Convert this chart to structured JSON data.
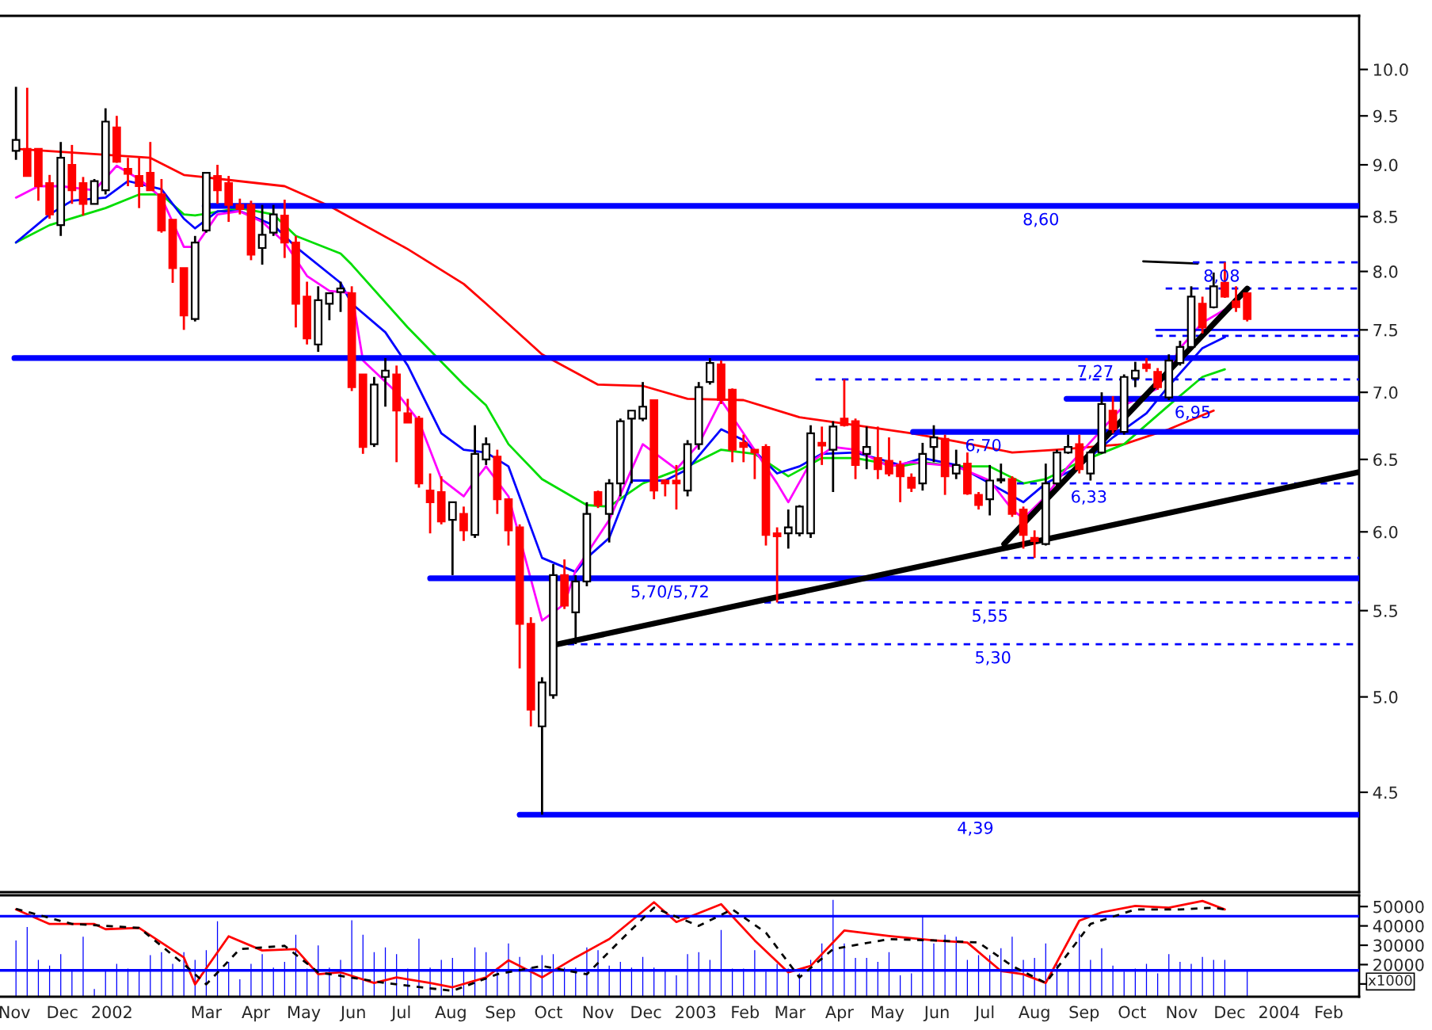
{
  "chart_data": [
    {
      "type": "candlestick",
      "log": true,
      "tick_labels": "y",
      "xlim": [
        "2001-10-23",
        "2004-02-20"
      ],
      "ylim": [
        4.03,
        10.61
      ],
      "xticks": [
        {
          "value": "2001-11-01",
          "label": null
        },
        {
          "value": "2001-12-01",
          "label": null
        },
        {
          "value": "2002-01-01",
          "label": null
        },
        {
          "value": "2002-03-01",
          "label": null
        },
        {
          "value": "2002-04-01",
          "label": null
        },
        {
          "value": "2002-05-01",
          "label": null
        },
        {
          "value": "2002-06-01",
          "label": null
        },
        {
          "value": "2002-07-01",
          "label": null
        },
        {
          "value": "2002-08-01",
          "label": null
        },
        {
          "value": "2002-09-01",
          "label": null
        },
        {
          "value": "2002-10-01",
          "label": null
        },
        {
          "value": "2002-11-01",
          "label": null
        },
        {
          "value": "2002-12-01",
          "label": null
        },
        {
          "value": "2003-01-01",
          "label": null
        },
        {
          "value": "2003-02-01",
          "label": null
        },
        {
          "value": "2003-03-01",
          "label": null
        },
        {
          "value": "2003-04-01",
          "label": null
        },
        {
          "value": "2003-05-01",
          "label": null
        },
        {
          "value": "2003-06-01",
          "label": null
        },
        {
          "value": "2003-07-01",
          "label": null
        },
        {
          "value": "2003-08-01",
          "label": null
        },
        {
          "value": "2003-09-01",
          "label": null
        },
        {
          "value": "2003-10-01",
          "label": null
        },
        {
          "value": "2003-11-01",
          "label": null
        },
        {
          "value": "2003-12-01",
          "label": null
        },
        {
          "value": "2004-01-01",
          "label": null
        },
        {
          "value": "2004-02-01",
          "label": null
        }
      ],
      "yticks": [
        4.5,
        {
          "value": 5,
          "label": "5.0"
        },
        5.5,
        {
          "value": 6,
          "label": "6.0"
        },
        6.5,
        {
          "value": 7,
          "label": "7.0"
        },
        7.5,
        {
          "value": 8,
          "label": "8.0"
        },
        8.5,
        {
          "value": 9,
          "label": "9.0"
        },
        9.5,
        {
          "value": 10,
          "label": "10.0"
        }
      ],
      "x": [
        "2001-11-02",
        "2001-11-09",
        "2001-11-16",
        "2001-11-23",
        "2001-11-30",
        "2001-12-07",
        "2001-12-14",
        "2001-12-21",
        "2001-12-28",
        "2002-01-04",
        "2002-01-11",
        "2002-01-18",
        "2002-01-25",
        "2002-02-01",
        "2002-02-08",
        "2002-02-15",
        "2002-02-22",
        "2002-03-01",
        "2002-03-08",
        "2002-03-15",
        "2002-03-22",
        "2002-03-29",
        "2002-04-05",
        "2002-04-12",
        "2002-04-19",
        "2002-04-26",
        "2002-05-03",
        "2002-05-10",
        "2002-05-17",
        "2002-05-24",
        "2002-05-31",
        "2002-06-07",
        "2002-06-14",
        "2002-06-21",
        "2002-06-28",
        "2002-07-05",
        "2002-07-12",
        "2002-07-19",
        "2002-07-26",
        "2002-08-02",
        "2002-08-09",
        "2002-08-16",
        "2002-08-23",
        "2002-08-30",
        "2002-09-06",
        "2002-09-13",
        "2002-09-20",
        "2002-09-27",
        "2002-10-04",
        "2002-10-11",
        "2002-10-18",
        "2002-10-25",
        "2002-11-01",
        "2002-11-08",
        "2002-11-15",
        "2002-11-22",
        "2002-11-29",
        "2002-12-06",
        "2002-12-13",
        "2002-12-20",
        "2002-12-27",
        "2003-01-03",
        "2003-01-10",
        "2003-01-17",
        "2003-01-24",
        "2003-01-31",
        "2003-02-07",
        "2003-02-14",
        "2003-02-21",
        "2003-02-28",
        "2003-03-07",
        "2003-03-14",
        "2003-03-21",
        "2003-03-28",
        "2003-04-04",
        "2003-04-11",
        "2003-04-18",
        "2003-04-25",
        "2003-05-02",
        "2003-05-09",
        "2003-05-16",
        "2003-05-23",
        "2003-05-30",
        "2003-06-06",
        "2003-06-13",
        "2003-06-20",
        "2003-06-27",
        "2003-07-04",
        "2003-07-11",
        "2003-07-18",
        "2003-07-25",
        "2003-08-01",
        "2003-08-08",
        "2003-08-15",
        "2003-08-22",
        "2003-08-29",
        "2003-09-05",
        "2003-09-12",
        "2003-09-19",
        "2003-09-26",
        "2003-10-03",
        "2003-10-10",
        "2003-10-17",
        "2003-10-24",
        "2003-10-31",
        "2003-11-07",
        "2003-11-14",
        "2003-11-21",
        "2003-11-28",
        "2003-12-05",
        "2003-12-12"
      ],
      "ohlc": [
        [
          9.14,
          9.81,
          9.05,
          9.25
        ],
        [
          9.16,
          9.8,
          8.89,
          8.89
        ],
        [
          9.16,
          9.16,
          8.65,
          8.79
        ],
        [
          8.82,
          8.9,
          8.48,
          8.52
        ],
        [
          8.42,
          9.23,
          8.32,
          9.07
        ],
        [
          9.0,
          9.2,
          8.62,
          8.75
        ],
        [
          8.82,
          8.88,
          8.51,
          8.62
        ],
        [
          8.62,
          8.86,
          8.62,
          8.84
        ],
        [
          8.75,
          9.58,
          8.71,
          9.44
        ],
        [
          9.38,
          9.5,
          9.02,
          9.03
        ],
        [
          8.96,
          9.07,
          8.79,
          8.91
        ],
        [
          8.89,
          9.07,
          8.58,
          8.79
        ],
        [
          8.92,
          9.23,
          8.75,
          8.75
        ],
        [
          8.71,
          8.86,
          8.35,
          8.37
        ],
        [
          8.47,
          8.47,
          7.9,
          8.03
        ],
        [
          8.03,
          8.03,
          7.5,
          7.62
        ],
        [
          7.59,
          8.32,
          7.57,
          8.26
        ],
        [
          8.37,
          8.92,
          8.35,
          8.92
        ],
        [
          8.89,
          9.0,
          8.62,
          8.75
        ],
        [
          8.82,
          8.89,
          8.45,
          8.61
        ],
        [
          8.61,
          8.67,
          8.52,
          8.57
        ],
        [
          8.61,
          8.65,
          8.1,
          8.15
        ],
        [
          8.21,
          8.61,
          8.06,
          8.33
        ],
        [
          8.35,
          8.61,
          8.32,
          8.52
        ],
        [
          8.51,
          8.66,
          8.12,
          8.26
        ],
        [
          8.26,
          8.32,
          7.52,
          7.72
        ],
        [
          7.78,
          7.91,
          7.38,
          7.43
        ],
        [
          7.38,
          7.87,
          7.32,
          7.75
        ],
        [
          7.72,
          7.81,
          7.58,
          7.81
        ],
        [
          7.82,
          7.91,
          7.65,
          7.85
        ],
        [
          7.81,
          7.87,
          7.01,
          7.04
        ],
        [
          7.14,
          7.14,
          6.54,
          6.59
        ],
        [
          6.61,
          7.12,
          6.59,
          7.06
        ],
        [
          7.12,
          7.27,
          6.89,
          7.17
        ],
        [
          7.14,
          7.21,
          6.48,
          6.86
        ],
        [
          6.84,
          6.95,
          6.77,
          6.77
        ],
        [
          6.8,
          6.82,
          6.3,
          6.33
        ],
        [
          6.28,
          6.4,
          5.99,
          6.2
        ],
        [
          6.27,
          6.38,
          6.05,
          6.07
        ],
        [
          6.08,
          6.2,
          5.72,
          6.2
        ],
        [
          6.12,
          6.17,
          5.94,
          6.01
        ],
        [
          5.98,
          6.75,
          5.96,
          6.54
        ],
        [
          6.5,
          6.66,
          6.46,
          6.61
        ],
        [
          6.52,
          6.57,
          6.12,
          6.22
        ],
        [
          6.22,
          6.22,
          5.91,
          6.01
        ],
        [
          6.03,
          6.05,
          5.16,
          5.42
        ],
        [
          5.42,
          5.46,
          4.84,
          4.93
        ],
        [
          4.84,
          5.11,
          4.39,
          5.08
        ],
        [
          5.01,
          5.79,
          4.99,
          5.72
        ],
        [
          5.72,
          5.82,
          5.51,
          5.53
        ],
        [
          5.49,
          5.72,
          5.3,
          5.68
        ],
        [
          5.68,
          6.2,
          5.65,
          6.12
        ],
        [
          6.27,
          6.28,
          6.16,
          6.18
        ],
        [
          6.12,
          6.36,
          5.93,
          6.33
        ],
        [
          6.33,
          6.8,
          6.24,
          6.78
        ],
        [
          6.8,
          6.86,
          6.33,
          6.86
        ],
        [
          6.8,
          7.08,
          6.78,
          6.89
        ],
        [
          6.94,
          6.94,
          6.22,
          6.28
        ],
        [
          6.35,
          6.36,
          6.24,
          6.33
        ],
        [
          6.35,
          6.46,
          6.15,
          6.33
        ],
        [
          6.28,
          6.64,
          6.24,
          6.61
        ],
        [
          6.61,
          7.08,
          6.57,
          7.04
        ],
        [
          7.08,
          7.27,
          7.06,
          7.23
        ],
        [
          7.22,
          7.25,
          6.91,
          6.94
        ],
        [
          7.02,
          7.03,
          6.48,
          6.57
        ],
        [
          6.62,
          6.68,
          6.48,
          6.59
        ],
        [
          6.57,
          6.57,
          6.36,
          6.55
        ],
        [
          6.59,
          6.61,
          5.91,
          5.98
        ],
        [
          5.99,
          6.03,
          5.55,
          5.97
        ],
        [
          5.99,
          6.15,
          5.89,
          6.03
        ],
        [
          5.99,
          6.18,
          5.97,
          6.17
        ],
        [
          5.99,
          6.75,
          5.96,
          6.69
        ],
        [
          6.62,
          6.74,
          6.46,
          6.6
        ],
        [
          6.57,
          6.78,
          6.27,
          6.74
        ],
        [
          6.8,
          7.1,
          6.74,
          6.75
        ],
        [
          6.78,
          6.8,
          6.36,
          6.46
        ],
        [
          6.54,
          6.74,
          6.43,
          6.59
        ],
        [
          6.51,
          6.74,
          6.36,
          6.43
        ],
        [
          6.49,
          6.66,
          6.38,
          6.4
        ],
        [
          6.46,
          6.49,
          6.2,
          6.38
        ],
        [
          6.37,
          6.4,
          6.27,
          6.3
        ],
        [
          6.33,
          6.62,
          6.28,
          6.54
        ],
        [
          6.59,
          6.75,
          6.48,
          6.66
        ],
        [
          6.65,
          6.68,
          6.25,
          6.38
        ],
        [
          6.4,
          6.57,
          6.36,
          6.46
        ],
        [
          6.47,
          6.55,
          6.25,
          6.26
        ],
        [
          6.25,
          6.27,
          6.15,
          6.18
        ],
        [
          6.22,
          6.46,
          6.11,
          6.35
        ],
        [
          6.35,
          6.47,
          6.33,
          6.36
        ],
        [
          6.36,
          6.38,
          6.1,
          6.12
        ],
        [
          6.15,
          6.17,
          5.89,
          5.98
        ],
        [
          5.96,
          6.01,
          5.83,
          5.94
        ],
        [
          5.92,
          6.47,
          5.91,
          6.33
        ],
        [
          6.33,
          6.57,
          6.31,
          6.55
        ],
        [
          6.55,
          6.68,
          6.54,
          6.59
        ],
        [
          6.61,
          6.68,
          6.4,
          6.43
        ],
        [
          6.4,
          6.57,
          6.35,
          6.55
        ],
        [
          6.55,
          7.0,
          6.54,
          6.91
        ],
        [
          6.86,
          6.97,
          6.69,
          6.72
        ],
        [
          6.7,
          7.14,
          6.68,
          7.12
        ],
        [
          7.11,
          7.24,
          7.04,
          7.17
        ],
        [
          7.22,
          7.27,
          7.16,
          7.19
        ],
        [
          7.16,
          7.19,
          7.02,
          7.04
        ],
        [
          6.96,
          7.3,
          6.94,
          7.25
        ],
        [
          7.23,
          7.41,
          7.21,
          7.36
        ],
        [
          7.36,
          7.87,
          7.35,
          7.78
        ],
        [
          7.72,
          7.78,
          7.47,
          7.52
        ],
        [
          7.69,
          7.99,
          7.68,
          7.87
        ],
        [
          7.9,
          8.08,
          7.77,
          7.78
        ],
        [
          7.74,
          7.87,
          7.65,
          7.69
        ],
        [
          7.81,
          7.81,
          7.57,
          7.59
        ]
      ],
      "series": [
        {
          "type": "line",
          "color": "#ff0000",
          "x": [
            "2001-11-02",
            "2002-01-25",
            "2002-02-15",
            "2002-04-19",
            "2002-05-17",
            "2002-07-05",
            "2002-08-09",
            "2002-08-23",
            "2002-09-27",
            "2002-11-01",
            "2002-11-29",
            "2002-12-27",
            "2003-01-31",
            "2003-03-07",
            "2003-04-11",
            "2003-05-16",
            "2003-06-13",
            "2003-07-18",
            "2003-08-15",
            "2003-09-26",
            "2003-10-24",
            "2003-11-21"
          ],
          "values": [
            9.16,
            9.07,
            8.9,
            8.79,
            8.6,
            8.2,
            7.89,
            7.72,
            7.3,
            7.06,
            7.05,
            6.95,
            6.94,
            6.81,
            6.75,
            6.69,
            6.63,
            6.55,
            6.57,
            6.61,
            6.72,
            6.86
          ]
        },
        {
          "type": "line",
          "color": "#00dd00",
          "x": [
            "2001-11-02",
            "2001-11-23",
            "2001-12-28",
            "2002-01-18",
            "2002-02-01",
            "2002-02-15",
            "2002-02-22",
            "2002-03-22",
            "2002-04-12",
            "2002-04-26",
            "2002-05-24",
            "2002-05-31",
            "2002-07-05",
            "2002-08-09",
            "2002-08-23",
            "2002-09-06",
            "2002-09-27",
            "2002-10-25",
            "2002-11-08",
            "2002-11-29",
            "2002-12-27",
            "2003-01-17",
            "2003-02-07",
            "2003-02-28",
            "2003-03-21",
            "2003-04-11",
            "2003-05-09",
            "2003-05-23",
            "2003-06-13",
            "2003-07-04",
            "2003-07-25",
            "2003-08-08",
            "2003-08-29",
            "2003-09-26",
            "2003-10-24",
            "2003-11-14",
            "2003-11-28"
          ],
          "values": [
            8.26,
            8.42,
            8.58,
            8.71,
            8.71,
            8.52,
            8.51,
            8.58,
            8.52,
            8.32,
            8.16,
            8.06,
            7.52,
            7.06,
            6.9,
            6.61,
            6.36,
            6.18,
            6.17,
            6.33,
            6.45,
            6.57,
            6.54,
            6.38,
            6.51,
            6.51,
            6.45,
            6.48,
            6.45,
            6.45,
            6.33,
            6.36,
            6.48,
            6.61,
            6.9,
            7.12,
            7.18
          ]
        },
        {
          "type": "line",
          "color": "#0000ff",
          "x": [
            "2001-11-02",
            "2001-11-23",
            "2001-12-07",
            "2001-12-28",
            "2002-01-11",
            "2002-02-01",
            "2002-02-15",
            "2002-02-22",
            "2002-03-08",
            "2002-03-22",
            "2002-04-12",
            "2002-04-26",
            "2002-05-24",
            "2002-05-31",
            "2002-06-21",
            "2002-07-05",
            "2002-07-26",
            "2002-08-09",
            "2002-08-23",
            "2002-09-06",
            "2002-09-27",
            "2002-10-18",
            "2002-10-25",
            "2002-11-08",
            "2002-11-22",
            "2002-12-13",
            "2002-12-27",
            "2003-01-17",
            "2003-01-31",
            "2003-02-21",
            "2003-03-07",
            "2003-03-21",
            "2003-04-11",
            "2003-05-09",
            "2003-05-23",
            "2003-06-13",
            "2003-07-04",
            "2003-07-25",
            "2003-08-08",
            "2003-08-29",
            "2003-09-19",
            "2003-10-10",
            "2003-10-24",
            "2003-11-14",
            "2003-11-28"
          ],
          "values": [
            8.26,
            8.52,
            8.65,
            8.68,
            8.84,
            8.76,
            8.48,
            8.39,
            8.55,
            8.55,
            8.42,
            8.22,
            7.9,
            7.72,
            7.48,
            7.21,
            6.69,
            6.57,
            6.55,
            6.45,
            5.83,
            5.74,
            5.83,
            5.96,
            6.35,
            6.35,
            6.43,
            6.72,
            6.64,
            6.4,
            6.45,
            6.54,
            6.55,
            6.46,
            6.51,
            6.46,
            6.33,
            6.2,
            6.33,
            6.45,
            6.66,
            6.84,
            7.05,
            7.35,
            7.44
          ]
        },
        {
          "type": "line",
          "color": "#ff00ff",
          "x": [
            "2001-11-02",
            "2001-11-16",
            "2001-11-30",
            "2001-12-21",
            "2002-01-04",
            "2002-01-18",
            "2002-02-01",
            "2002-02-15",
            "2002-02-22",
            "2002-03-08",
            "2002-03-22",
            "2002-04-05",
            "2002-04-19",
            "2002-05-03",
            "2002-05-17",
            "2002-05-31",
            "2002-06-07",
            "2002-06-28",
            "2002-07-12",
            "2002-07-26",
            "2002-08-09",
            "2002-08-16",
            "2002-08-23",
            "2002-09-06",
            "2002-09-27",
            "2002-10-11",
            "2002-10-18",
            "2002-11-08",
            "2002-11-29",
            "2002-12-20",
            "2003-01-03",
            "2003-01-17",
            "2003-01-31",
            "2003-02-21",
            "2003-02-28",
            "2003-03-14",
            "2003-03-28",
            "2003-04-11",
            "2003-05-02",
            "2003-05-16",
            "2003-06-13",
            "2003-07-04",
            "2003-07-18",
            "2003-07-25",
            "2003-08-08",
            "2003-08-22",
            "2003-09-26",
            "2003-10-17",
            "2003-10-31",
            "2003-11-14",
            "2003-11-28"
          ],
          "values": [
            8.68,
            8.79,
            8.79,
            8.75,
            8.99,
            8.86,
            8.68,
            8.22,
            8.22,
            8.52,
            8.55,
            8.45,
            8.26,
            7.96,
            7.83,
            7.81,
            7.25,
            7.0,
            6.78,
            6.36,
            6.24,
            6.35,
            6.45,
            6.24,
            5.44,
            5.54,
            5.75,
            6.08,
            6.61,
            6.43,
            6.61,
            6.94,
            6.69,
            6.33,
            6.2,
            6.48,
            6.59,
            6.57,
            6.45,
            6.48,
            6.45,
            6.35,
            6.15,
            6.09,
            6.24,
            6.45,
            6.9,
            7.03,
            7.35,
            7.56,
            7.67
          ]
        },
        {
          "type": "line",
          "color": "#0000ff",
          "line_style": "solid",
          "x": [
            "2002-02-28",
            "2004-02-20"
          ],
          "values": [
            8.6,
            8.6
          ]
        },
        {
          "type": "line",
          "color": "#0000ff",
          "line_style": "solid",
          "x": [
            "2001-11-01",
            "2004-02-20"
          ],
          "values": [
            7.27,
            7.27
          ]
        },
        {
          "type": "line",
          "color": "#0000ff",
          "line_style": "solid",
          "x": [
            "2003-08-21",
            "2004-02-20"
          ],
          "values": [
            6.95,
            6.95
          ]
        },
        {
          "type": "line",
          "color": "#0000ff",
          "line_style": "solid",
          "x": [
            "2003-05-17",
            "2004-02-20"
          ],
          "values": [
            6.7,
            6.7
          ]
        },
        {
          "type": "line",
          "color": "#0000ff",
          "line_style": "solid",
          "x": [
            "2002-07-19",
            "2004-02-20"
          ],
          "values": [
            5.7,
            5.7
          ]
        },
        {
          "type": "line",
          "color": "#0000ff",
          "line_style": "solid",
          "x": [
            "2002-09-13",
            "2004-02-20"
          ],
          "values": [
            4.39,
            4.39
          ]
        },
        {
          "type": "line",
          "color": "#0000ff",
          "x": [
            "2003-10-16",
            "2004-02-20"
          ],
          "values": [
            7.5,
            7.5
          ]
        },
        {
          "type": "line",
          "color": "#0000ff",
          "line_style": "dashed",
          "x": [
            "2003-11-08",
            "2004-02-20"
          ],
          "values": [
            8.08,
            8.08
          ]
        },
        {
          "type": "line",
          "color": "#0000ff",
          "line_style": "dashed",
          "x": [
            "2003-10-22",
            "2004-02-20"
          ],
          "values": [
            7.85,
            7.85
          ]
        },
        {
          "type": "line",
          "color": "#0000ff",
          "line_style": "dashed",
          "x": [
            "2003-10-16",
            "2004-02-20"
          ],
          "values": [
            7.45,
            7.45
          ]
        },
        {
          "type": "line",
          "color": "#0000ff",
          "line_style": "dashed",
          "x": [
            "2003-03-17",
            "2004-02-20"
          ],
          "values": [
            7.1,
            7.1
          ]
        },
        {
          "type": "line",
          "color": "#0000ff",
          "line_style": "dashed",
          "x": [
            "2003-07-21",
            "2004-02-20"
          ],
          "values": [
            6.33,
            6.33
          ]
        },
        {
          "type": "line",
          "color": "#0000ff",
          "line_style": "dashed",
          "x": [
            "2003-07-11",
            "2004-02-20"
          ],
          "values": [
            5.83,
            5.83
          ]
        },
        {
          "type": "line",
          "color": "#0000ff",
          "line_style": "dashed",
          "x": [
            "2003-02-13",
            "2004-02-20"
          ],
          "values": [
            5.55,
            5.55
          ]
        },
        {
          "type": "line",
          "color": "#0000ff",
          "line_style": "dashed",
          "x": [
            "2002-10-13",
            "2004-02-20"
          ],
          "values": [
            5.3,
            5.3
          ]
        },
        {
          "type": "line",
          "color": "#000000",
          "x": [
            "2003-10-08",
            "2003-11-11"
          ],
          "values": [
            8.09,
            8.07
          ]
        },
        {
          "type": "line",
          "color": "#000000",
          "line_style": "solid",
          "x": [
            "2002-10-07",
            "2004-02-20"
          ],
          "values": [
            5.3,
            6.41
          ]
        },
        {
          "type": "line",
          "color": "#000000",
          "line_style": "solid",
          "x": [
            "2003-07-13",
            "2003-12-12"
          ],
          "values": [
            5.92,
            7.85
          ]
        }
      ],
      "annotations": [
        {
          "text": "8,60",
          "x": "2003-08-05",
          "y": 8.6
        },
        {
          "text": "8,08",
          "x": "2003-11-26",
          "y": 8.08
        },
        {
          "text": "7,27",
          "x": "2003-09-08",
          "y": 7.27
        },
        {
          "text": "6,95",
          "x": "2003-11-08",
          "y": 6.95
        },
        {
          "text": "6,70",
          "x": "2003-06-30",
          "y": 6.7
        },
        {
          "text": "6,33",
          "x": "2003-09-04",
          "y": 6.33
        },
        {
          "text": "5,70/5,72",
          "x": "2002-12-16",
          "y": 5.7
        },
        {
          "text": "5,55",
          "x": "2003-07-04",
          "y": 5.55
        },
        {
          "text": "5,30",
          "x": "2003-07-06",
          "y": 5.3
        },
        {
          "text": "4,39",
          "x": "2003-06-25",
          "y": 4.39
        }
      ]
    },
    {
      "type": "bar",
      "color": "#0000ff",
      "xlim": [
        "2001-10-23",
        "2004-02-20"
      ],
      "ylim": [
        3400,
        55800
      ],
      "yticks": [
        {
          "value": 10000,
          "label": null
        },
        20000,
        30000,
        40000,
        50000
      ],
      "xticks": [
        {
          "value": "2001-11-01",
          "label": "Nov"
        },
        {
          "value": "2001-12-01",
          "label": "Dec"
        },
        {
          "value": "2002-01-01",
          "label": "2002"
        },
        {
          "value": "2002-03-01",
          "label": "Mar"
        },
        {
          "value": "2002-04-01",
          "label": "Apr"
        },
        {
          "value": "2002-05-01",
          "label": "May"
        },
        {
          "value": "2002-06-01",
          "label": "Jun"
        },
        {
          "value": "2002-07-01",
          "label": "Jul"
        },
        {
          "value": "2002-08-01",
          "label": "Aug"
        },
        {
          "value": "2002-09-01",
          "label": "Sep"
        },
        {
          "value": "2002-10-01",
          "label": "Oct"
        },
        {
          "value": "2002-11-01",
          "label": "Nov"
        },
        {
          "value": "2002-12-01",
          "label": "Dec"
        },
        {
          "value": "2003-01-01",
          "label": "2003"
        },
        {
          "value": "2003-02-01",
          "label": "Feb"
        },
        {
          "value": "2003-03-01",
          "label": "Mar"
        },
        {
          "value": "2003-04-01",
          "label": "Apr"
        },
        {
          "value": "2003-05-01",
          "label": "May"
        },
        {
          "value": "2003-06-01",
          "label": "Jun"
        },
        {
          "value": "2003-07-01",
          "label": "Jul"
        },
        {
          "value": "2003-08-01",
          "label": "Aug"
        },
        {
          "value": "2003-09-01",
          "label": "Sep"
        },
        {
          "value": "2003-10-01",
          "label": "Oct"
        },
        {
          "value": "2003-11-01",
          "label": "Nov"
        },
        {
          "value": "2003-12-01",
          "label": "Dec"
        },
        {
          "value": "2004-01-01",
          "label": "2004"
        },
        {
          "value": "2004-02-01",
          "label": "Feb"
        }
      ],
      "x": [
        "2001-11-02",
        "2001-11-09",
        "2001-11-16",
        "2001-11-23",
        "2001-11-30",
        "2001-12-07",
        "2001-12-14",
        "2001-12-21",
        "2001-12-28",
        "2002-01-04",
        "2002-01-11",
        "2002-01-18",
        "2002-01-25",
        "2002-02-01",
        "2002-02-08",
        "2002-02-15",
        "2002-02-22",
        "2002-03-01",
        "2002-03-08",
        "2002-03-15",
        "2002-03-22",
        "2002-03-29",
        "2002-04-05",
        "2002-04-12",
        "2002-04-19",
        "2002-04-26",
        "2002-05-03",
        "2002-05-10",
        "2002-05-17",
        "2002-05-24",
        "2002-05-31",
        "2002-06-07",
        "2002-06-14",
        "2002-06-21",
        "2002-06-28",
        "2002-07-05",
        "2002-07-12",
        "2002-07-19",
        "2002-07-26",
        "2002-08-02",
        "2002-08-09",
        "2002-08-16",
        "2002-08-23",
        "2002-08-30",
        "2002-09-06",
        "2002-09-13",
        "2002-09-20",
        "2002-09-27",
        "2002-10-04",
        "2002-10-11",
        "2002-10-18",
        "2002-10-25",
        "2002-11-01",
        "2002-11-08",
        "2002-11-15",
        "2002-11-22",
        "2002-11-29",
        "2002-12-06",
        "2002-12-13",
        "2002-12-20",
        "2002-12-27",
        "2003-01-03",
        "2003-01-10",
        "2003-01-17",
        "2003-01-24",
        "2003-01-31",
        "2003-02-07",
        "2003-02-14",
        "2003-02-21",
        "2003-02-28",
        "2003-03-07",
        "2003-03-14",
        "2003-03-21",
        "2003-03-28",
        "2003-04-04",
        "2003-04-11",
        "2003-04-18",
        "2003-04-25",
        "2003-05-02",
        "2003-05-09",
        "2003-05-16",
        "2003-05-23",
        "2003-05-30",
        "2003-06-06",
        "2003-06-13",
        "2003-06-20",
        "2003-06-27",
        "2003-07-04",
        "2003-07-11",
        "2003-07-18",
        "2003-07-25",
        "2003-08-01",
        "2003-08-08",
        "2003-08-15",
        "2003-08-22",
        "2003-08-29",
        "2003-09-05",
        "2003-09-12",
        "2003-09-19",
        "2003-09-26",
        "2003-10-03",
        "2003-10-10",
        "2003-10-17",
        "2003-10-24",
        "2003-10-31",
        "2003-11-07",
        "2003-11-14",
        "2003-11-21",
        "2003-11-28",
        "2003-12-05",
        "2003-12-12"
      ],
      "values": [
        33000,
        40000,
        23000,
        20000,
        26000,
        18000,
        35000,
        8000,
        18000,
        21000,
        18500,
        18000,
        25500,
        27000,
        21000,
        27000,
        23000,
        28000,
        43000,
        22000,
        13000,
        21000,
        26000,
        19000,
        22000,
        36000,
        18500,
        30500,
        19000,
        23000,
        43500,
        36000,
        27000,
        29500,
        26000,
        18500,
        34000,
        19000,
        23000,
        24000,
        18000,
        29500,
        27000,
        19000,
        31500,
        24500,
        19000,
        25500,
        26000,
        19000,
        19000,
        29500,
        28000,
        20000,
        22000,
        19000,
        24500,
        19000,
        18000,
        15000,
        26000,
        27000,
        23000,
        38500,
        18500,
        18500,
        28000,
        17000,
        21000,
        18500,
        16000,
        23000,
        31500,
        54000,
        31500,
        24000,
        24000,
        22000,
        27000,
        15000,
        16000,
        45000,
        31500,
        36000,
        35000,
        23000,
        25500,
        25500,
        29000,
        35000,
        23000,
        24000,
        31500,
        22000,
        18000,
        36500,
        23000,
        29000,
        20000,
        17000,
        18500,
        21000,
        16000,
        26000,
        22000,
        21000,
        24500,
        23000,
        23000,
        null,
        18000
      ],
      "series": [
        {
          "type": "line",
          "color": "#ff0000",
          "x": [
            "2001-11-02",
            "2001-11-23",
            "2001-12-21",
            "2001-12-28",
            "2002-01-18",
            "2002-02-15",
            "2002-02-22",
            "2002-03-15",
            "2002-04-05",
            "2002-04-26",
            "2002-05-10",
            "2002-05-24",
            "2002-06-14",
            "2002-06-28",
            "2002-07-19",
            "2002-08-02",
            "2002-08-23",
            "2002-09-06",
            "2002-09-27",
            "2002-10-18",
            "2002-11-08",
            "2002-12-06",
            "2002-12-20",
            "2003-01-17",
            "2003-02-07",
            "2003-02-28",
            "2003-03-14",
            "2003-04-04",
            "2003-05-02",
            "2003-05-30",
            "2003-06-20",
            "2003-07-11",
            "2003-07-25",
            "2003-08-08",
            "2003-08-29",
            "2003-09-12",
            "2003-10-03",
            "2003-10-24",
            "2003-11-14",
            "2003-11-28"
          ],
          "values": [
            48500,
            41000,
            41000,
            38300,
            39000,
            23700,
            9800,
            34600,
            27300,
            28000,
            15000,
            16000,
            10500,
            13400,
            10500,
            8300,
            13400,
            22200,
            13400,
            23700,
            33200,
            52200,
            42000,
            51200,
            32500,
            16000,
            19300,
            37600,
            34800,
            32500,
            31400,
            16700,
            15000,
            10500,
            42700,
            47000,
            50300,
            49400,
            52900,
            48500
          ]
        },
        {
          "type": "line",
          "color": "#000000",
          "line_style": "dashed",
          "x": [
            "2001-11-02",
            "2001-12-07",
            "2002-01-18",
            "2002-02-15",
            "2002-03-01",
            "2002-03-22",
            "2002-04-19",
            "2002-05-10",
            "2002-06-21",
            "2002-08-02",
            "2002-08-30",
            "2002-09-27",
            "2002-10-25",
            "2002-11-15",
            "2002-12-06",
            "2003-01-03",
            "2003-01-24",
            "2003-02-14",
            "2003-03-07",
            "2003-03-28",
            "2003-05-02",
            "2003-05-30",
            "2003-06-27",
            "2003-07-18",
            "2003-08-08",
            "2003-09-05",
            "2003-10-03",
            "2003-10-31",
            "2003-11-21",
            "2003-11-28"
          ],
          "values": [
            48800,
            41000,
            39000,
            20200,
            9800,
            28000,
            29700,
            16000,
            10500,
            6400,
            15000,
            19300,
            15000,
            32500,
            49400,
            40000,
            48500,
            36500,
            13400,
            28000,
            33200,
            32500,
            31400,
            19300,
            10500,
            41000,
            48500,
            48500,
            49400,
            48500
          ]
        }
      ],
      "ref_lines": [
        {
          "axis": "y",
          "value": 45000,
          "color": "#0000ff"
        },
        {
          "axis": "y",
          "value": 17000,
          "color": "#0000ff"
        }
      ],
      "annotations": [
        "x1000"
      ]
    }
  ]
}
